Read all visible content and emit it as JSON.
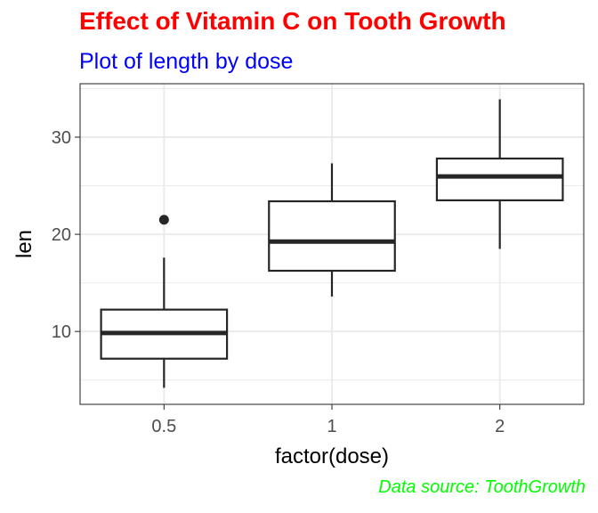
{
  "chart_data": {
    "type": "box",
    "title": "Effect of Vitamin C on Tooth Growth",
    "subtitle": "Plot of length by dose",
    "caption": "Data source: ToothGrowth",
    "xlabel": "factor(dose)",
    "ylabel": "len",
    "categories": [
      "0.5",
      "1",
      "2"
    ],
    "yticks": [
      10,
      20,
      30
    ],
    "ylim": [
      2.5,
      35.5
    ],
    "grid": true,
    "boxes": [
      {
        "category": "0.5",
        "min": 4.2,
        "q1": 7.2,
        "median": 9.85,
        "q3": 12.25,
        "max": 17.6,
        "outliers": [
          21.5
        ]
      },
      {
        "category": "1",
        "min": 13.6,
        "q1": 16.25,
        "median": 19.25,
        "q3": 23.4,
        "max": 27.3,
        "outliers": []
      },
      {
        "category": "2",
        "min": 18.5,
        "q1": 23.5,
        "median": 25.95,
        "q3": 27.8,
        "max": 33.9,
        "outliers": []
      }
    ],
    "colors": {
      "title": "#ff0000",
      "subtitle": "#0000ff",
      "caption": "#00ff00",
      "box": "#262626"
    }
  }
}
